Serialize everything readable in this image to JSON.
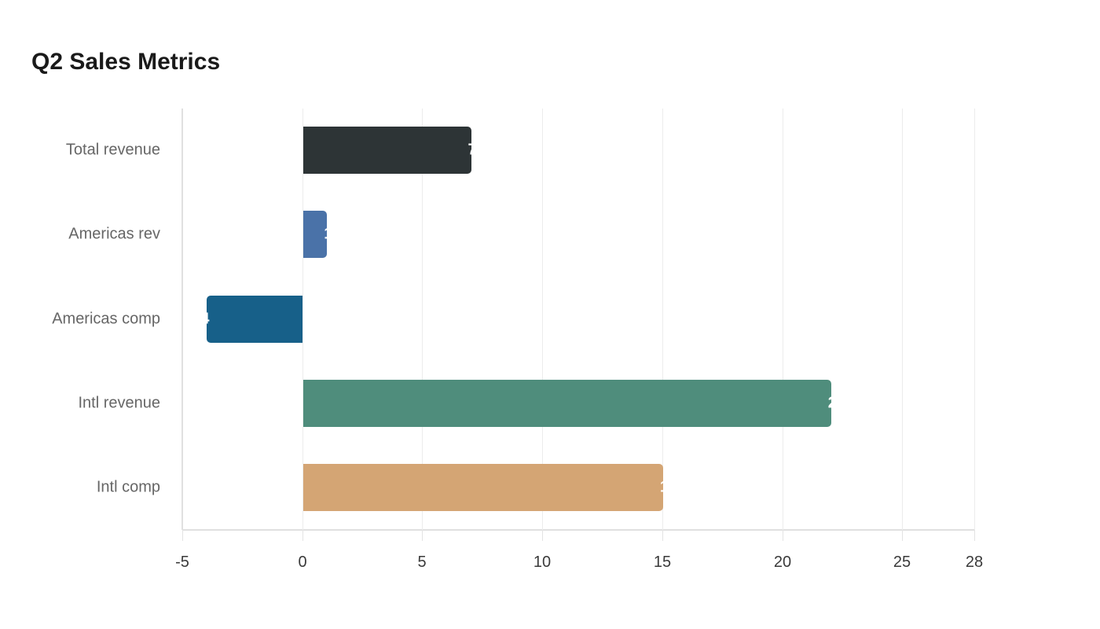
{
  "title": "Q2 Sales Metrics",
  "chart_data": {
    "type": "bar",
    "orientation": "horizontal",
    "title": "Q2 Sales Metrics",
    "xlabel": "",
    "ylabel": "",
    "categories": [
      "Total revenue",
      "Americas rev",
      "Americas comp",
      "Intl revenue",
      "Intl comp"
    ],
    "values": [
      7,
      1,
      -4,
      22,
      15
    ],
    "colors": [
      "#2d3436",
      "#4a72a8",
      "#176089",
      "#4f8d7c",
      "#d4a574"
    ],
    "xlim": [
      -5,
      28
    ],
    "xticks": [
      -5,
      0,
      5,
      10,
      15,
      20,
      25,
      28
    ],
    "grid": "vertical",
    "legend": "none",
    "value_labels": "inside-end (clipped)"
  },
  "axis": {
    "ticks": [
      "-5",
      "0",
      "5",
      "10",
      "15",
      "20",
      "25",
      "28"
    ]
  },
  "bars": [
    {
      "label": "Total revenue",
      "value": "7"
    },
    {
      "label": "Americas rev",
      "value": "1"
    },
    {
      "label": "Americas comp",
      "value": "-4"
    },
    {
      "label": "Intl revenue",
      "value": "22"
    },
    {
      "label": "Intl comp",
      "value": "15"
    }
  ]
}
